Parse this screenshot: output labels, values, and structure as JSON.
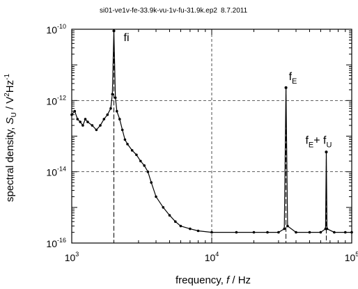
{
  "chart_data": {
    "type": "line",
    "header": {
      "file": "si01-ve1v-fe-33.9k-vu-1v-fu-31.9k.ep2",
      "date": "8.7.2011"
    },
    "xlabel": {
      "prefix": "frequency, ",
      "var": "f",
      "suffix": " / Hz"
    },
    "ylabel": {
      "prefix": "spectral density, ",
      "var": "S",
      "sub": "U",
      "mid": " / V",
      "sup1": "2",
      "mid2": "Hz",
      "sup2": "-1"
    },
    "x_scale": "log",
    "y_scale": "log",
    "xlim": [
      1000,
      100000
    ],
    "ylim": [
      1e-16,
      1e-10
    ],
    "x_ticks": [
      {
        "value": 1000,
        "base": "10",
        "exp": "3"
      },
      {
        "value": 10000,
        "base": "10",
        "exp": "4"
      },
      {
        "value": 100000,
        "base": "10",
        "exp": "5"
      }
    ],
    "y_ticks": [
      {
        "value": 1e-16,
        "base": "10",
        "exp": "-16"
      },
      {
        "value": 1e-14,
        "base": "10",
        "exp": "-14"
      },
      {
        "value": 1e-12,
        "base": "10",
        "exp": "-12"
      },
      {
        "value": 1e-10,
        "base": "10",
        "exp": "-10"
      }
    ],
    "grid": "dashed at major decades",
    "annotations": [
      {
        "key": "fi",
        "text": "fi",
        "x": 2000,
        "y": 1e-10
      },
      {
        "key": "fE",
        "text": "f",
        "sub": "E",
        "x": 33900,
        "y": 2e-12
      },
      {
        "key": "fEfU",
        "text": "f",
        "sub": "E",
        "text2": "+ f",
        "sub2": "U",
        "x": 65800,
        "y": 3e-14
      }
    ],
    "peaks": [
      {
        "x": 2000,
        "y": 9e-11
      },
      {
        "x": 33900,
        "y": 2.3e-12
      },
      {
        "x": 65800,
        "y": 3.6e-14
      }
    ],
    "series": [
      {
        "color": "#000000",
        "points": [
          [
            1000,
            4e-13
          ],
          [
            1050,
            5e-13
          ],
          [
            1100,
            3e-13
          ],
          [
            1150,
            2.5e-13
          ],
          [
            1200,
            2e-13
          ],
          [
            1250,
            3e-13
          ],
          [
            1300,
            2.5e-13
          ],
          [
            1400,
            2e-13
          ],
          [
            1500,
            1.5e-13
          ],
          [
            1600,
            2e-13
          ],
          [
            1700,
            3e-13
          ],
          [
            1800,
            4e-13
          ],
          [
            1900,
            6e-13
          ],
          [
            1950,
            1.5e-12
          ],
          [
            2000,
            9e-11
          ],
          [
            2050,
            1.2e-12
          ],
          [
            2100,
            5e-13
          ],
          [
            2200,
            3e-13
          ],
          [
            2300,
            1.5e-13
          ],
          [
            2400,
            8e-14
          ],
          [
            2500,
            6e-14
          ],
          [
            2700,
            4e-14
          ],
          [
            2900,
            3e-14
          ],
          [
            3100,
            2e-14
          ],
          [
            3300,
            1.5e-14
          ],
          [
            3500,
            1e-14
          ],
          [
            3700,
            5e-15
          ],
          [
            4000,
            2e-15
          ],
          [
            4500,
            1e-15
          ],
          [
            5000,
            6e-16
          ],
          [
            5500,
            4e-16
          ],
          [
            6000,
            3e-16
          ],
          [
            7000,
            2.5e-16
          ],
          [
            8000,
            2.2e-16
          ],
          [
            10000,
            2e-16
          ],
          [
            15000,
            2e-16
          ],
          [
            20000,
            2e-16
          ],
          [
            25000,
            2e-16
          ],
          [
            30000,
            2e-16
          ],
          [
            33000,
            2.5e-16
          ],
          [
            33900,
            2.3e-12
          ],
          [
            34800,
            3e-16
          ],
          [
            40000,
            2e-16
          ],
          [
            50000,
            2e-16
          ],
          [
            60000,
            2e-16
          ],
          [
            65000,
            2.5e-16
          ],
          [
            65800,
            3.6e-14
          ],
          [
            66600,
            2.5e-16
          ],
          [
            75000,
            2e-16
          ],
          [
            90000,
            2e-16
          ],
          [
            100000,
            2e-16
          ]
        ]
      }
    ]
  }
}
